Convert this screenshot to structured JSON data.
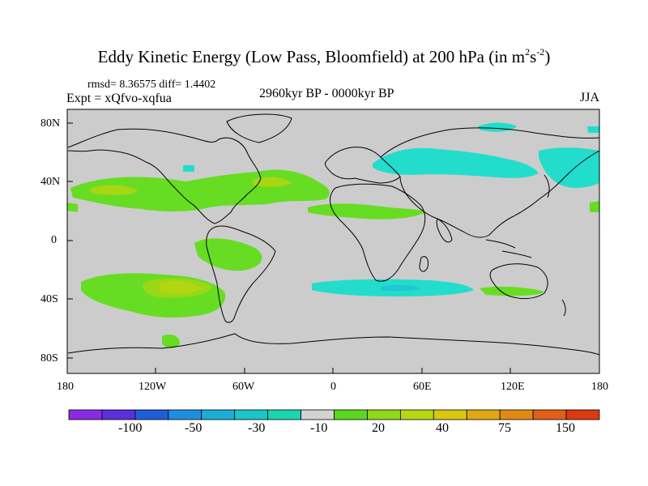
{
  "title": {
    "main": "Eddy Kinetic Energy (Low Pass, Bloomfield) at 200 hPa (in m",
    "sup1": "2",
    "s": "s",
    "sup2": "-2",
    "close": ")"
  },
  "stats": "rmsd= 8.36575 diff= 1.4402",
  "expt": "Expt = xQfvo-xqfua",
  "period": "2960kyr BP - 0000kyr BP",
  "season": "JJA",
  "lat_labels": [
    "80N",
    "40N",
    "0",
    "40S",
    "80S"
  ],
  "lon_labels": [
    "180",
    "120W",
    "60W",
    "0",
    "60E",
    "120E",
    "180"
  ],
  "colorbar": {
    "labels": [
      "-100",
      "-50",
      "-30",
      "-10",
      "20",
      "40",
      "75",
      "150"
    ],
    "colors": [
      "#8a2be2",
      "#5a2fdc",
      "#1f5fd6",
      "#1e8fe0",
      "#1aaed6",
      "#19c6c8",
      "#1ad6b0",
      "#d3d3d3",
      "#5ad81e",
      "#8fd81a",
      "#b6d814",
      "#d8c810",
      "#e0a812",
      "#e08a14",
      "#e06018",
      "#dc3a12"
    ]
  },
  "map": {
    "land_color": "#cccccc",
    "green": "#66dd22",
    "yellowgreen": "#a8d614",
    "yellow": "#d4d418",
    "cyan": "#22ddcc",
    "cyan_dark": "#1ec8d2"
  }
}
